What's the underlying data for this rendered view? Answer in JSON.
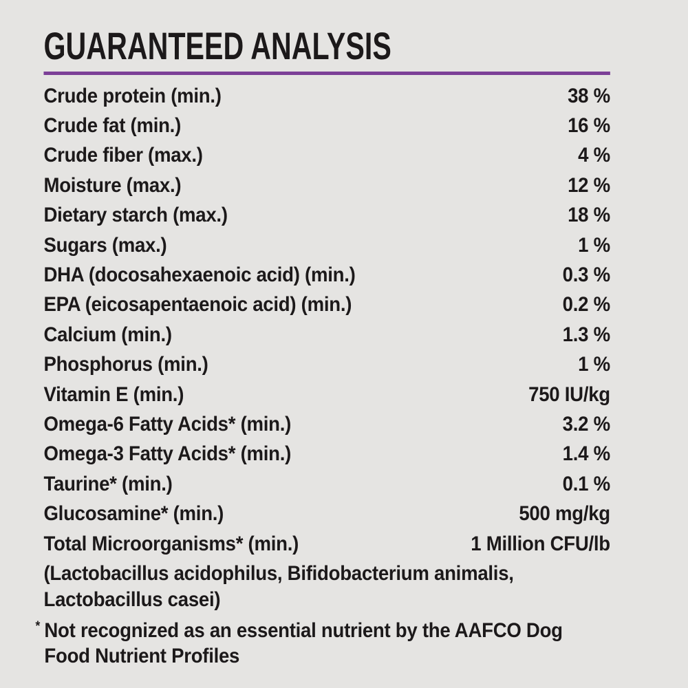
{
  "label": {
    "title": "GUARANTEED ANALYSIS",
    "colors": {
      "background": "#e5e4e2",
      "text": "#1c191a",
      "accent_rule": "#7c3f97"
    },
    "rows": [
      {
        "name": "Crude protein (min.)",
        "value": "38 %"
      },
      {
        "name": "Crude fat (min.)",
        "value": "16 %"
      },
      {
        "name": "Crude fiber (max.)",
        "value": "4 %"
      },
      {
        "name": "Moisture (max.)",
        "value": "12 %"
      },
      {
        "name": "Dietary starch (max.)",
        "value": "18 %"
      },
      {
        "name": "Sugars (max.)",
        "value": "1 %"
      },
      {
        "name": "DHA (docosahexaenoic acid) (min.)",
        "value": "0.3 %"
      },
      {
        "name": "EPA (eicosapentaenoic acid) (min.)",
        "value": "0.2 %"
      },
      {
        "name": "Calcium (min.)",
        "value": "1.3 %"
      },
      {
        "name": "Phosphorus (min.)",
        "value": "1 %"
      },
      {
        "name": "Vitamin E (min.)",
        "value": "750 IU/kg"
      },
      {
        "name": "Omega-6 Fatty Acids* (min.)",
        "value": "3.2 %"
      },
      {
        "name": "Omega-3 Fatty Acids* (min.)",
        "value": "1.4 %"
      },
      {
        "name": "Taurine* (min.)",
        "value": "0.1 %"
      },
      {
        "name": "Glucosamine* (min.)",
        "value": "500 mg/kg"
      },
      {
        "name": "Total Microorganisms* (min.)",
        "value": "1 Million CFU/lb"
      }
    ],
    "microorganisms_note": "(Lactobacillus acidophilus, Bifidobacterium animalis, Lactobacillus casei)",
    "footnote_marker": "*",
    "footnote": "Not recognized as an essential nutrient by the AAFCO Dog Food Nutrient Profiles"
  }
}
